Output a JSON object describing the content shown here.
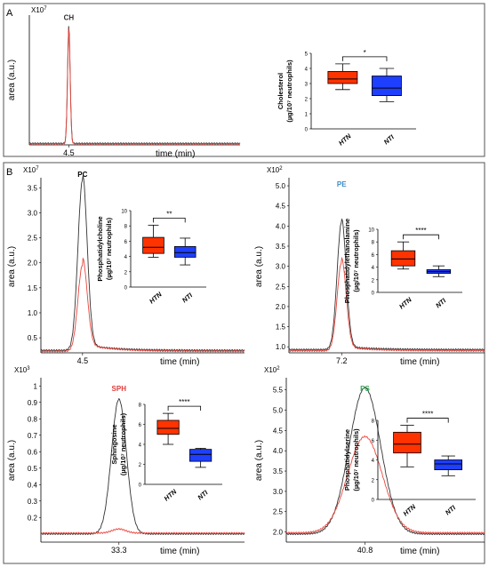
{
  "colors": {
    "htn": "#ff3300",
    "nti": "#1f3fff",
    "trace_black": "#333333",
    "trace_red": "#e8453c",
    "panel_border": "#555555",
    "label_blue": "#3a8ac8",
    "label_red": "#e23b3b",
    "label_green": "#3aa55a"
  },
  "chart_data": [
    {
      "id": "chrom_ch",
      "type": "line",
      "panel_letter": "A",
      "peak_label": "CH",
      "scale_label": "X10",
      "scale_exp": "7",
      "peak_label_color": "#333333",
      "ylabel": "area (a.u.)",
      "xlabel": "time (min)",
      "peak_tick": "4.5",
      "yticks": [],
      "ylim": [
        0,
        1
      ],
      "peak_x": 4.5,
      "xlim": [
        3.0,
        11.0
      ],
      "series": [
        {
          "color": "#333333",
          "peak": 0.92,
          "width": 0.05,
          "baseline": 0.012
        },
        {
          "color": "#e8453c",
          "peak": 0.9,
          "width": 0.05,
          "baseline": 0.008
        }
      ]
    },
    {
      "id": "box_ch",
      "type": "box",
      "ylabel_lines": [
        "Cholesterol",
        "(µg/10⁷ neutrophils)"
      ],
      "yticks": [
        "0",
        "1",
        "2",
        "3",
        "4",
        "5"
      ],
      "ylim": [
        0,
        5
      ],
      "categories": [
        "HTN",
        "NTI"
      ],
      "significance": "*",
      "boxes": [
        {
          "min": 2.6,
          "q1": 3.0,
          "median": 3.3,
          "q3": 3.8,
          "max": 4.3,
          "color": "#ff3300"
        },
        {
          "min": 1.8,
          "q1": 2.2,
          "median": 2.7,
          "q3": 3.5,
          "max": 4.0,
          "color": "#1f3fff"
        }
      ]
    },
    {
      "id": "chrom_pc",
      "type": "line",
      "panel_letter": "B",
      "peak_label": "PC",
      "scale_label": "X10",
      "scale_exp": "7",
      "peak_label_color": "#000000",
      "ylabel": "area (a.u.)",
      "xlabel": "time (min)",
      "peak_tick": "4.5",
      "yticks": [
        "0.5",
        "1.0",
        "1.5",
        "2.0",
        "2.5",
        "3.0",
        "3.5"
      ],
      "ylim": [
        0.2,
        3.7
      ],
      "peak_x": 4.5,
      "xlim": [
        3.6,
        8.0
      ],
      "series": [
        {
          "color": "#333333",
          "peak": 3.65,
          "width": 0.1,
          "baseline": 0.25,
          "tail": 0.12,
          "tailw": 0.6
        },
        {
          "color": "#e8453c",
          "peak": 1.95,
          "width": 0.1,
          "baseline": 0.23,
          "tail": 0.15,
          "tailw": 0.6
        }
      ]
    },
    {
      "id": "box_pc",
      "type": "box",
      "ylabel_lines": [
        "Phosphatidylcholine",
        "(µg/10⁷ neutrophils)"
      ],
      "yticks": [
        "0",
        "2",
        "4",
        "6",
        "8",
        "10"
      ],
      "ylim": [
        0,
        10
      ],
      "categories": [
        "HTN",
        "NTI"
      ],
      "significance": "**",
      "boxes": [
        {
          "min": 3.9,
          "q1": 4.4,
          "median": 5.2,
          "q3": 6.5,
          "max": 8.1,
          "color": "#ff3300"
        },
        {
          "min": 2.9,
          "q1": 3.9,
          "median": 4.5,
          "q3": 5.3,
          "max": 6.4,
          "color": "#1f3fff"
        }
      ]
    },
    {
      "id": "chrom_pe",
      "type": "line",
      "peak_label": "PE",
      "scale_label": "X10",
      "scale_exp": "2",
      "peak_label_color": "#3a8ac8",
      "ylabel": "area (a.u.)",
      "xlabel": "time (min)",
      "peak_tick": "7.2",
      "yticks": [
        "1.0",
        "1.5",
        "2.0",
        "2.5",
        "3.0",
        "3.5",
        "4.0",
        "4.5",
        "5.0"
      ],
      "ylim": [
        0.85,
        5.2
      ],
      "peak_x": 7.2,
      "xlim": [
        5.8,
        11.0
      ],
      "series": [
        {
          "color": "#333333",
          "peak": 4.1,
          "width": 0.12,
          "baseline": 0.93,
          "tail": 0.08,
          "tailw": 0.8
        },
        {
          "color": "#e8453c",
          "peak": 3.1,
          "width": 0.12,
          "baseline": 0.9,
          "tail": 0.1,
          "tailw": 0.8
        }
      ]
    },
    {
      "id": "box_pe",
      "type": "box",
      "ylabel_lines": [
        "Phosphatidylethanolamine",
        "(µg/10⁷ neutrophils)"
      ],
      "yticks": [
        "0",
        "2",
        "4",
        "6",
        "8",
        "10"
      ],
      "ylim": [
        0,
        10
      ],
      "categories": [
        "HTN",
        "NTI"
      ],
      "significance": "****",
      "boxes": [
        {
          "min": 3.7,
          "q1": 4.2,
          "median": 5.3,
          "q3": 6.6,
          "max": 8.0,
          "color": "#ff3300"
        },
        {
          "min": 2.5,
          "q1": 3.0,
          "median": 3.3,
          "q3": 3.6,
          "max": 4.2,
          "color": "#1f3fff"
        }
      ]
    },
    {
      "id": "chrom_sph",
      "type": "line",
      "peak_label": "SPH",
      "scale_label": "X10",
      "scale_exp": "3",
      "peak_label_color": "#e23b3b",
      "ylabel": "area (a.u.)",
      "xlabel": "time (min)",
      "peak_tick": "33.3",
      "yticks": [
        "0.2",
        "0.3",
        "0.4",
        "0.5",
        "0.6",
        "0.7",
        "0.8",
        "0.9",
        "1"
      ],
      "ylim": [
        0.05,
        1.05
      ],
      "peak_x": 33.3,
      "xlim": [
        31.0,
        37.0
      ],
      "series": [
        {
          "color": "#333333",
          "peak": 0.92,
          "width": 0.22,
          "baseline": 0.1
        },
        {
          "color": "#e8453c",
          "peak": 0.13,
          "width": 0.2,
          "baseline": 0.105
        }
      ]
    },
    {
      "id": "box_sph",
      "type": "box",
      "ylabel_lines": [
        "Sphingosine",
        "(µg/10⁷ neutrophils)"
      ],
      "yticks": [
        "0",
        "2",
        "4",
        "6",
        "8"
      ],
      "ylim": [
        0,
        8
      ],
      "categories": [
        "HTN",
        "NTI"
      ],
      "significance": "****",
      "boxes": [
        {
          "min": 4.0,
          "q1": 5.0,
          "median": 5.6,
          "q3": 6.4,
          "max": 7.1,
          "color": "#ff3300"
        },
        {
          "min": 1.7,
          "q1": 2.3,
          "median": 3.0,
          "q3": 3.5,
          "max": 3.6,
          "color": "#1f3fff"
        }
      ]
    },
    {
      "id": "chrom_ps",
      "type": "line",
      "peak_label": "PS",
      "scale_label": "X10",
      "scale_exp": "2",
      "peak_label_color": "#3aa55a",
      "ylabel": "area (a.u.)",
      "xlabel": "time (min)",
      "peak_tick": "40.8",
      "yticks": [
        "2.0",
        "2.5",
        "3.0",
        "3.5",
        "4.0",
        "4.5",
        "5.0",
        "5.5"
      ],
      "ylim": [
        1.75,
        5.8
      ],
      "peak_x": 40.8,
      "xlim": [
        38.3,
        44.6
      ],
      "series": [
        {
          "color": "#333333",
          "peak": 5.55,
          "width": 0.5,
          "baseline": 1.95
        },
        {
          "color": "#e8453c",
          "peak": 4.35,
          "width": 0.55,
          "baseline": 1.98
        }
      ]
    },
    {
      "id": "box_ps",
      "type": "box",
      "ylabel_lines": [
        "Phosphatidylserine",
        "(µg/10⁷ neutrophils)"
      ],
      "yticks": [
        "0",
        "2",
        "4",
        "6",
        "8"
      ],
      "ylim": [
        0,
        8
      ],
      "categories": [
        "HTN",
        "NTI"
      ],
      "significance": "****",
      "boxes": [
        {
          "min": 3.3,
          "q1": 4.7,
          "median": 5.6,
          "q3": 6.8,
          "max": 7.5,
          "color": "#ff3300"
        },
        {
          "min": 2.4,
          "q1": 3.0,
          "median": 3.6,
          "q3": 4.0,
          "max": 4.4,
          "color": "#1f3fff"
        }
      ]
    }
  ]
}
